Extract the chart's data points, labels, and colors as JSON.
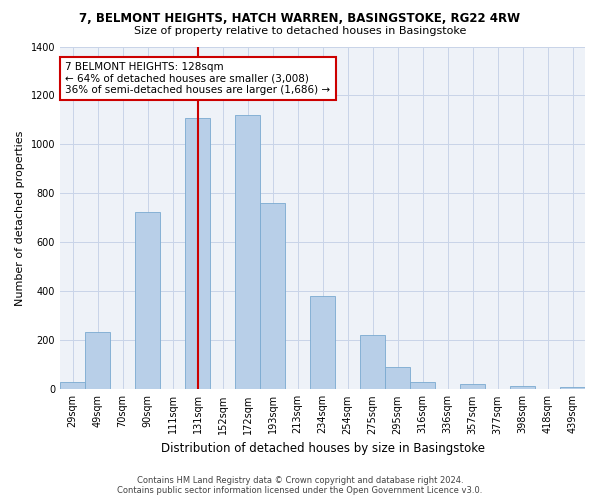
{
  "title": "7, BELMONT HEIGHTS, HATCH WARREN, BASINGSTOKE, RG22 4RW",
  "subtitle": "Size of property relative to detached houses in Basingstoke",
  "xlabel": "Distribution of detached houses by size in Basingstoke",
  "ylabel": "Number of detached properties",
  "categories": [
    "29sqm",
    "49sqm",
    "70sqm",
    "90sqm",
    "111sqm",
    "131sqm",
    "152sqm",
    "172sqm",
    "193sqm",
    "213sqm",
    "234sqm",
    "254sqm",
    "275sqm",
    "295sqm",
    "316sqm",
    "336sqm",
    "357sqm",
    "377sqm",
    "398sqm",
    "418sqm",
    "439sqm"
  ],
  "values": [
    30,
    235,
    0,
    725,
    0,
    1110,
    0,
    1120,
    760,
    0,
    380,
    0,
    220,
    90,
    30,
    0,
    22,
    0,
    15,
    0,
    10
  ],
  "bar_color": "#b8cfe8",
  "bar_edge_color": "#7aaad0",
  "vline_color": "#cc0000",
  "grid_color": "#c8d4e8",
  "background_color": "#eef2f8",
  "ylim": [
    0,
    1400
  ],
  "yticks": [
    0,
    200,
    400,
    600,
    800,
    1000,
    1200,
    1400
  ],
  "annotation_line1": "7 BELMONT HEIGHTS: 128sqm",
  "annotation_line2": "← 64% of detached houses are smaller (3,008)",
  "annotation_line3": "36% of semi-detached houses are larger (1,686) →",
  "annotation_box_color": "#ffffff",
  "annotation_box_edge_color": "#cc0000",
  "footer1": "Contains HM Land Registry data © Crown copyright and database right 2024.",
  "footer2": "Contains public sector information licensed under the Open Government Licence v3.0.",
  "title_fontsize": 8.5,
  "subtitle_fontsize": 8,
  "ylabel_fontsize": 8,
  "xlabel_fontsize": 8.5,
  "tick_fontsize": 7,
  "footer_fontsize": 6,
  "annot_fontsize": 7.5
}
